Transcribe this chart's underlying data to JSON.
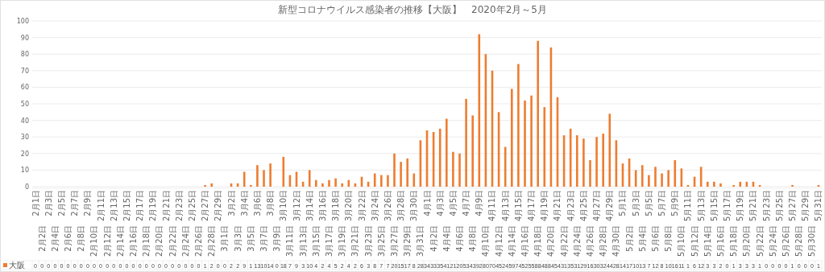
{
  "chart_data": {
    "type": "bar",
    "title": "新型コロナウイルス感染者の推移【大阪】　2020年2月～5月",
    "categories": [
      "2月1日",
      "2月2日",
      "2月3日",
      "2月4日",
      "2月5日",
      "2月6日",
      "2月7日",
      "2月8日",
      "2月9日",
      "2月10日",
      "2月11日",
      "2月12日",
      "2月13日",
      "2月14日",
      "2月15日",
      "2月16日",
      "2月17日",
      "2月18日",
      "2月19日",
      "2月20日",
      "2月21日",
      "2月22日",
      "2月23日",
      "2月24日",
      "2月25日",
      "2月26日",
      "2月27日",
      "2月28日",
      "2月29日",
      "3月1日",
      "3月2日",
      "3月3日",
      "3月4日",
      "3月5日",
      "3月6日",
      "3月7日",
      "3月8日",
      "3月9日",
      "3月10日",
      "3月11日",
      "3月12日",
      "3月13日",
      "3月14日",
      "3月15日",
      "3月16日",
      "3月17日",
      "3月18日",
      "3月19日",
      "3月20日",
      "3月21日",
      "3月22日",
      "3月23日",
      "3月24日",
      "3月25日",
      "3月26日",
      "3月27日",
      "3月28日",
      "3月29日",
      "3月30日",
      "3月31日",
      "4月1日",
      "4月2日",
      "4月3日",
      "4月4日",
      "4月5日",
      "4月6日",
      "4月7日",
      "4月8日",
      "4月9日",
      "4月10日",
      "4月11日",
      "4月12日",
      "4月13日",
      "4月14日",
      "4月15日",
      "4月16日",
      "4月17日",
      "4月18日",
      "4月19日",
      "4月20日",
      "4月21日",
      "4月22日",
      "4月23日",
      "4月24日",
      "4月25日",
      "4月26日",
      "4月27日",
      "4月28日",
      "4月29日",
      "4月30日",
      "5月1日",
      "5月2日",
      "5月3日",
      "5月4日",
      "5月5日",
      "5月6日",
      "5月7日",
      "5月8日",
      "5月9日",
      "5月10日",
      "5月11日",
      "5月12日",
      "5月13日",
      "5月14日",
      "5月15日",
      "5月16日",
      "5月17日",
      "5月18日",
      "5月19日",
      "5月20日",
      "5月21日",
      "5月22日",
      "5月23日",
      "5月24日",
      "5月25日",
      "5月26日",
      "5月27日",
      "5月28日",
      "5月29日",
      "5月30日",
      "5月31日"
    ],
    "series": [
      {
        "name": "大阪",
        "color": "#ed7d31",
        "values": [
          0,
          0,
          0,
          0,
          0,
          0,
          0,
          0,
          0,
          0,
          0,
          0,
          0,
          0,
          0,
          0,
          0,
          0,
          0,
          0,
          0,
          0,
          0,
          0,
          0,
          0,
          1,
          2,
          0,
          0,
          2,
          2,
          9,
          1,
          13,
          10,
          14,
          0,
          18,
          7,
          9,
          3,
          10,
          4,
          2,
          4,
          5,
          2,
          4,
          2,
          6,
          3,
          8,
          7,
          7,
          20,
          15,
          17,
          8,
          28,
          34,
          33,
          35,
          41,
          21,
          20,
          53,
          43,
          92,
          80,
          70,
          45,
          24,
          59,
          74,
          52,
          55,
          88,
          48,
          84,
          54,
          31,
          35,
          31,
          29,
          16,
          30,
          32,
          44,
          28,
          14,
          17,
          10,
          13,
          7,
          12,
          8,
          10,
          16,
          11,
          1,
          6,
          12,
          3,
          3,
          2,
          0,
          1,
          3,
          3,
          3,
          1,
          0,
          0,
          0,
          0,
          1,
          0,
          0,
          0,
          1
        ]
      }
    ],
    "ylim": [
      0,
      100
    ],
    "yticks": [
      0,
      10,
      20,
      30,
      40,
      50,
      60,
      70,
      80,
      90,
      100
    ],
    "grid": "y",
    "data_labels": true,
    "legend": "bottom left"
  }
}
